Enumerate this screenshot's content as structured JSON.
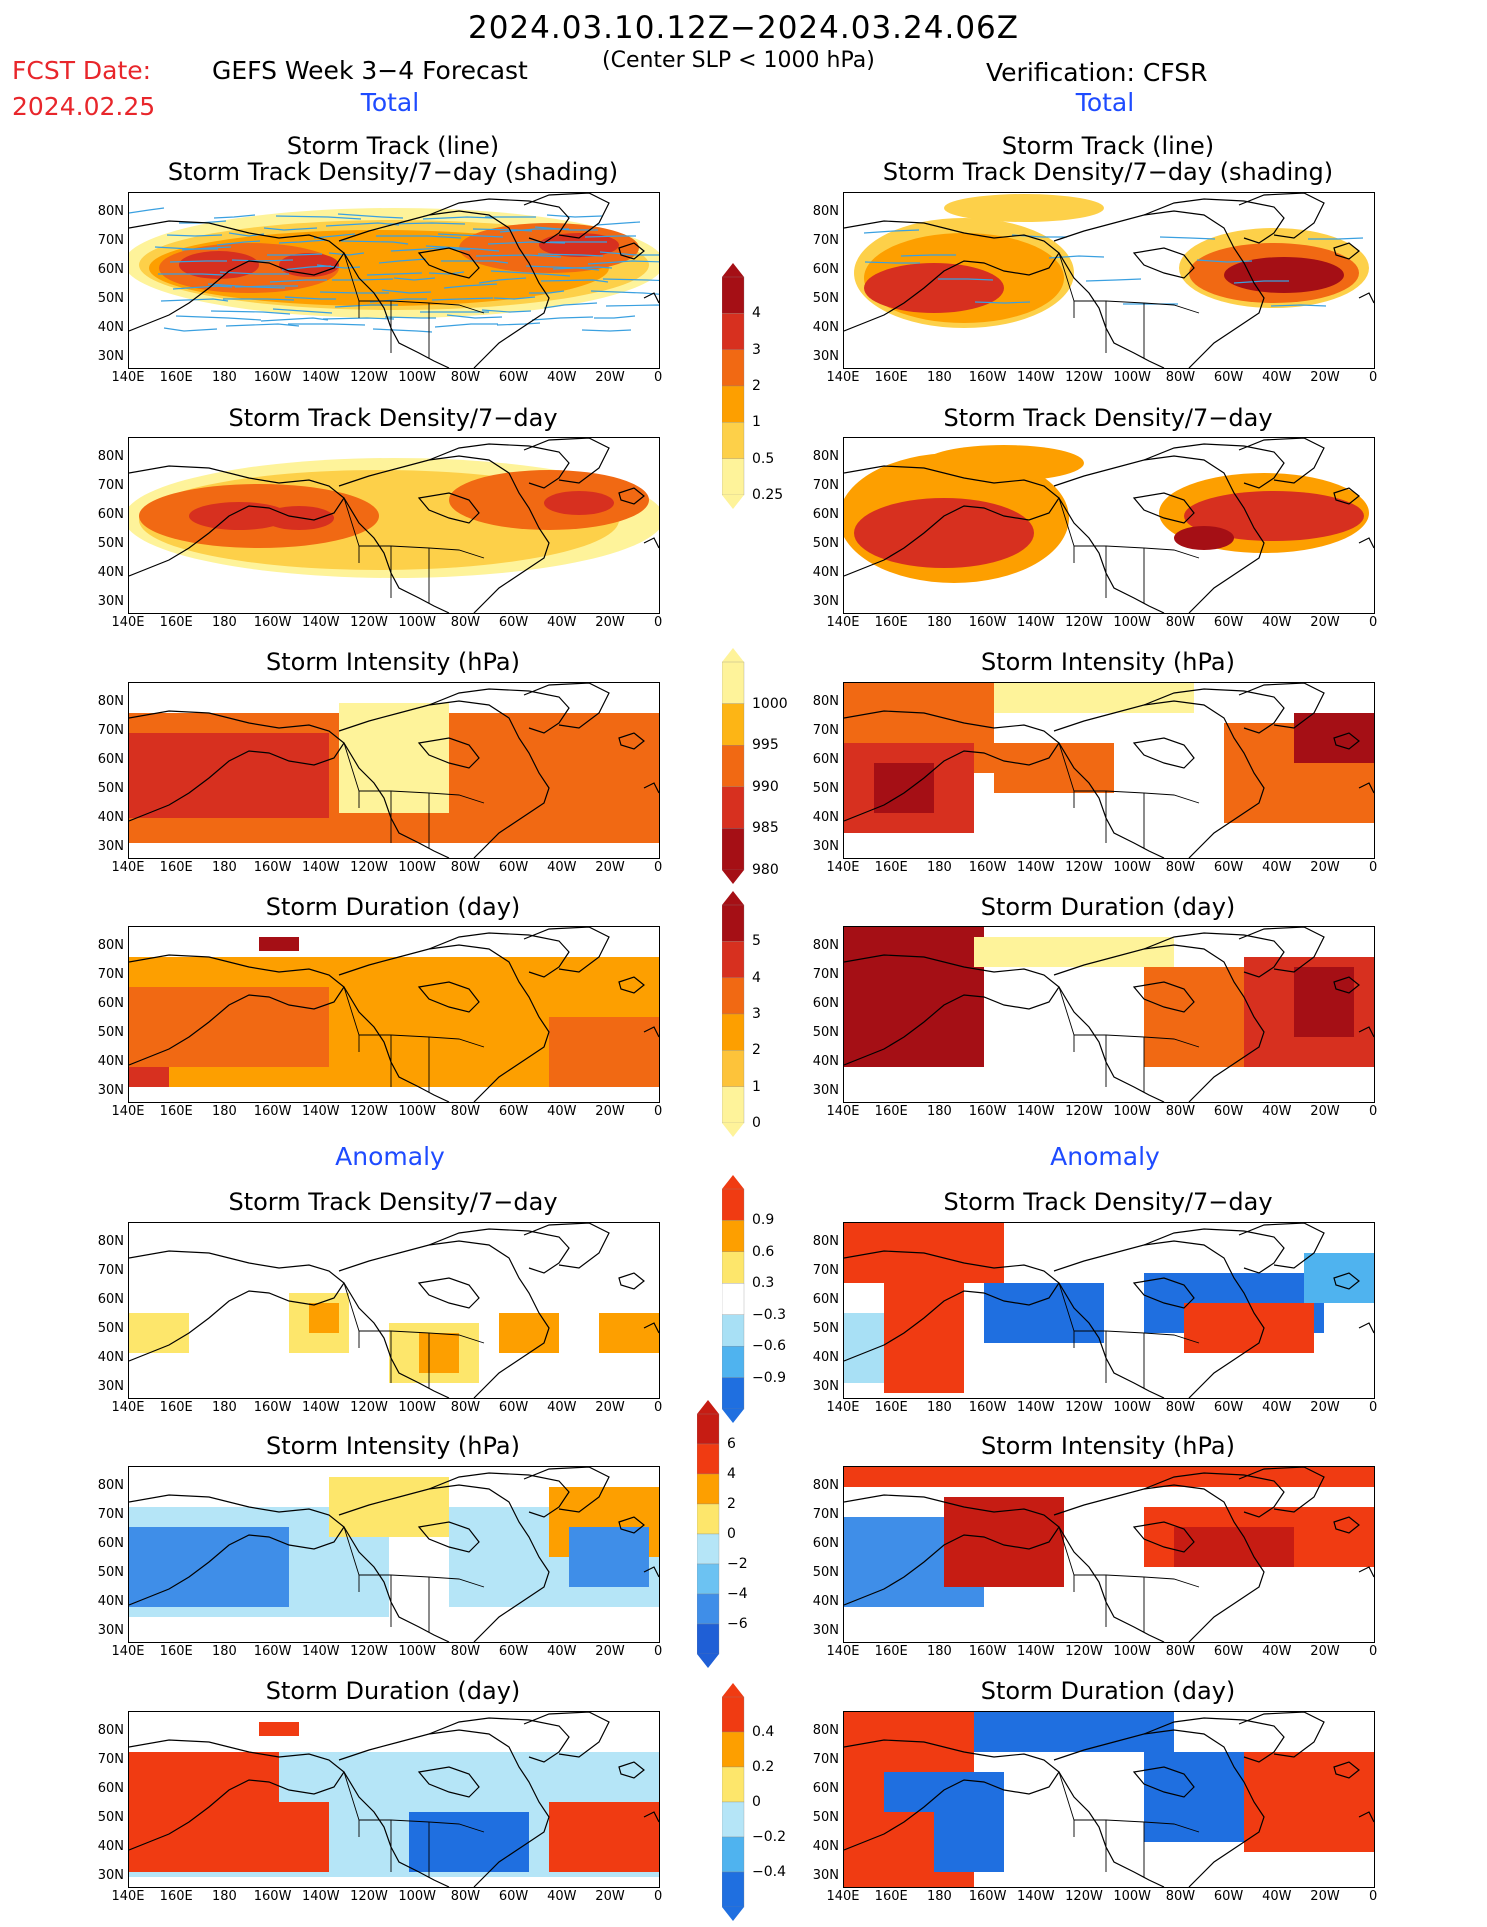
{
  "header": {
    "date_range": "2024.03.10.12Z−2024.03.24.06Z",
    "fcst_label": "FCST Date:",
    "fcst_date": "2024.02.25",
    "main_title": "GEFS Week 3−4 Forecast",
    "subtitle": "(Center SLP < 1000 hPa)",
    "verification": "Verification: CFSR"
  },
  "sections": {
    "total": "Total",
    "anomaly": "Anomaly"
  },
  "titles": {
    "track_line": "Storm Track (line)",
    "track_shade": "Storm Track Density/7−day (shading)",
    "density": "Storm Track Density/7−day",
    "intensity": "Storm Intensity (hPa)",
    "duration": "Storm Duration (day)"
  },
  "lat_labels": [
    "80N",
    "70N",
    "60N",
    "50N",
    "40N",
    "30N"
  ],
  "lon_labels": [
    "140E",
    "160E",
    "180",
    "160W",
    "140W",
    "120W",
    "100W",
    "80W",
    "60W",
    "40W",
    "20W",
    "0"
  ],
  "colorbars": {
    "density": {
      "labels": [
        "4",
        "3",
        "2",
        "1",
        "0.5",
        "0.25"
      ],
      "colors": [
        "#a50f15",
        "#d7301f",
        "#f16913",
        "#fd9f00",
        "#fdd049",
        "#fef39a"
      ]
    },
    "intensity": {
      "labels": [
        "1000",
        "995",
        "990",
        "985",
        "980"
      ],
      "colors": [
        "#fef39a",
        "#fdb515",
        "#f16913",
        "#d7301f",
        "#a50f15"
      ]
    },
    "duration": {
      "labels": [
        "5",
        "4",
        "3",
        "2",
        "1",
        "0"
      ],
      "colors": [
        "#a50f15",
        "#d7301f",
        "#f16913",
        "#fd9f00",
        "#fdc33a",
        "#fef39a"
      ]
    },
    "anom_density": {
      "labels": [
        "0.9",
        "0.6",
        "0.3",
        "−0.3",
        "−0.6",
        "−0.9"
      ],
      "colors": [
        "#f03b12",
        "#fd9f00",
        "#fde66b",
        "#ffffff",
        "#a8e0f5",
        "#4fb3ef",
        "#1f6fe0"
      ]
    },
    "anom_intensity": {
      "labels": [
        "6",
        "4",
        "2",
        "0",
        "−2",
        "−4",
        "−6"
      ],
      "colors": [
        "#c61c13",
        "#f03b12",
        "#fd9f00",
        "#fde66b",
        "#b5e5f7",
        "#6cc2f2",
        "#3f8ee8",
        "#1f5fd6"
      ]
    },
    "anom_duration": {
      "labels": [
        "0.4",
        "0.2",
        "0",
        "−0.2",
        "−0.4"
      ],
      "colors": [
        "#f03b12",
        "#fd9f00",
        "#fde66b",
        "#b5e5f7",
        "#4fb3ef",
        "#1f6fe0"
      ]
    }
  },
  "colors": {
    "accent_red": "#e8262b",
    "section_blue": "#1e4bff",
    "track_line": "#3aa0e0"
  }
}
